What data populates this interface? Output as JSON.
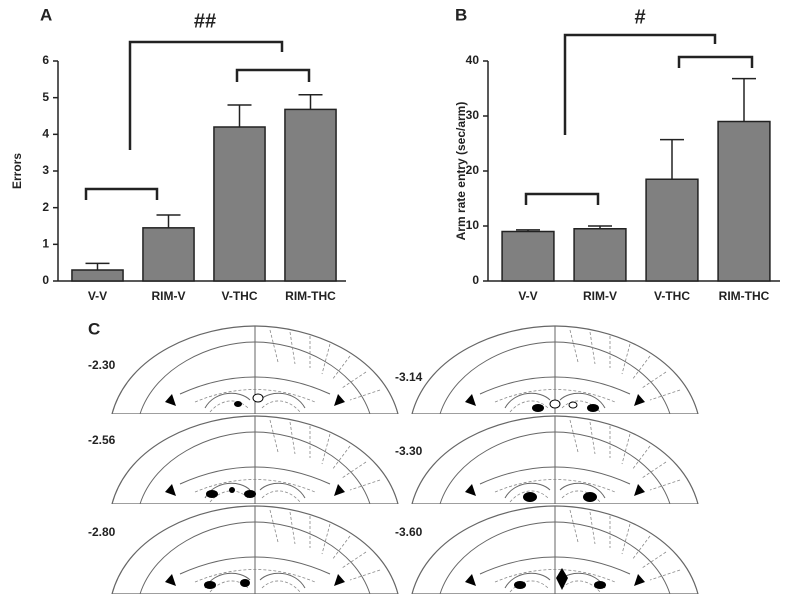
{
  "chart_data": [
    {
      "type": "bar",
      "panel": "A",
      "ylabel": "Errors",
      "annotation": "##",
      "categories": [
        "V-V",
        "RIM-V",
        "V-THC",
        "RIM-THC"
      ],
      "values": [
        0.3,
        1.45,
        4.2,
        4.68
      ],
      "errors": [
        0.18,
        0.35,
        0.6,
        0.4
      ],
      "color": "#808080",
      "ylim": [
        0,
        6
      ],
      "yticks": [
        0,
        1,
        2,
        3,
        4,
        5,
        6
      ]
    },
    {
      "type": "bar",
      "panel": "B",
      "ylabel": "Arm rate entry (sec/arm)",
      "annotation": "#",
      "categories": [
        "V-V",
        "RIM-V",
        "V-THC",
        "RIM-THC"
      ],
      "values": [
        9,
        9.5,
        18.5,
        29
      ],
      "errors": [
        0.3,
        0.5,
        7.2,
        7.8
      ],
      "color": "#808080",
      "ylim": [
        0,
        40
      ],
      "yticks": [
        0,
        10,
        20,
        30,
        40
      ]
    }
  ],
  "panel_c": {
    "label": "C",
    "sections": [
      "-2.30",
      "-2.56",
      "-2.80",
      "-3.14",
      "-3.30",
      "-3.60"
    ]
  }
}
